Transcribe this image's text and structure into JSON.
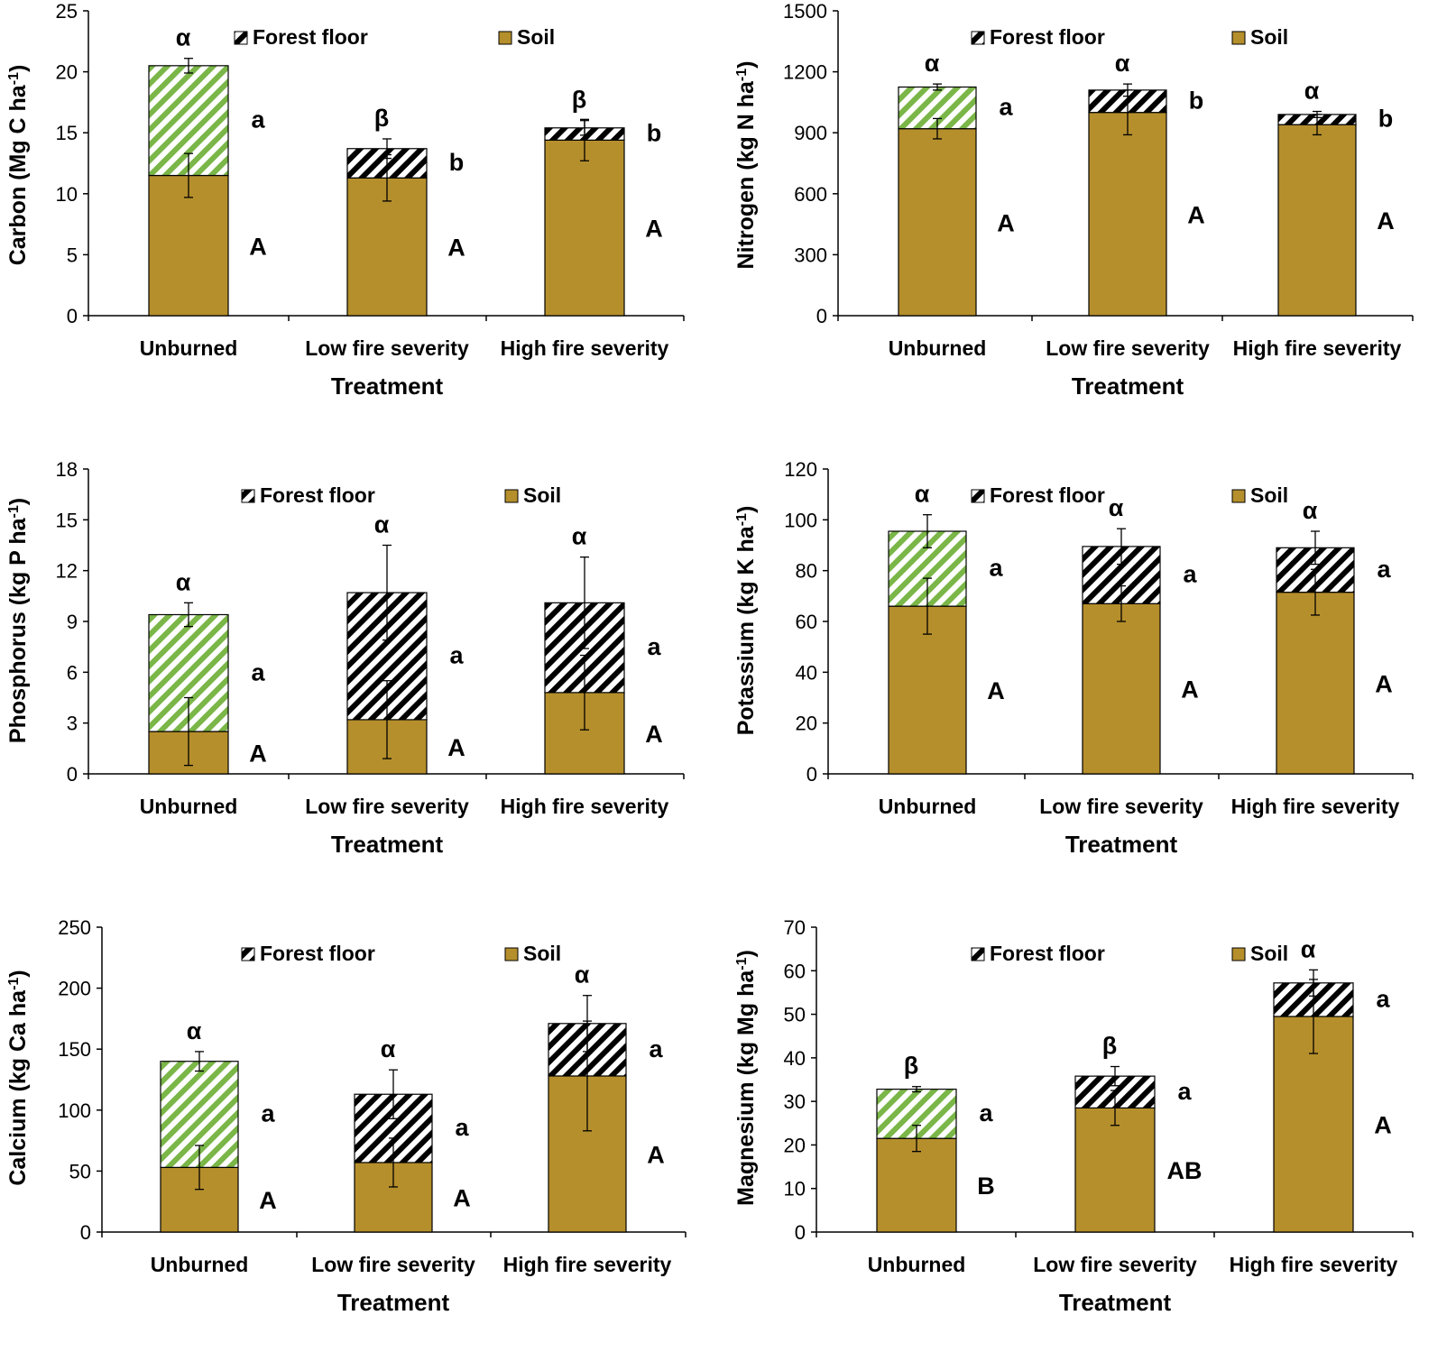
{
  "figure": {
    "x_axis_title": "Treatment",
    "legend": {
      "forest_floor": "Forest floor",
      "soil": "Soil"
    }
  },
  "colors": {
    "soil": "#b58f2c",
    "unburned_hatch": "#7ab648",
    "burned_hatch": "#000000",
    "axis": "#000000"
  },
  "chart_data": [
    {
      "type": "bar",
      "stacked": true,
      "ylabel": "Carbon (Mg C ha-1)",
      "ylabel_main": "Carbon (Mg C ha",
      "ylabel_sup": "-1",
      "ylabel_end": ")",
      "ylim": [
        0,
        25
      ],
      "yticks": [
        0,
        5,
        10,
        15,
        20,
        25
      ],
      "categories": [
        "Unburned",
        "Low fire severity",
        "High fire severity"
      ],
      "series": [
        {
          "name": "Soil",
          "values": [
            11.5,
            11.3,
            14.4
          ],
          "errors": [
            1.8,
            1.9,
            1.7
          ]
        },
        {
          "name": "Forest floor",
          "values": [
            9.0,
            2.4,
            1.0
          ],
          "errors": [
            0.6,
            0.8,
            0.6
          ]
        }
      ],
      "letters": {
        "soil": [
          "A",
          "A",
          "A"
        ],
        "forest_floor": [
          "a",
          "b",
          "b"
        ],
        "total": [
          "α",
          "β",
          "β"
        ]
      }
    },
    {
      "type": "bar",
      "stacked": true,
      "ylabel": "Nitrogen (kg N ha-1)",
      "ylabel_main": "Nitrogen (kg N ha",
      "ylabel_sup": "-1",
      "ylabel_end": ")",
      "ylim": [
        0,
        1500
      ],
      "yticks": [
        0,
        300,
        600,
        900,
        1200,
        1500
      ],
      "categories": [
        "Unburned",
        "Low fire severity",
        "High fire severity"
      ],
      "series": [
        {
          "name": "Soil",
          "values": [
            920,
            1000,
            940
          ],
          "errors": [
            50,
            110,
            50
          ]
        },
        {
          "name": "Forest floor",
          "values": [
            205,
            110,
            50
          ],
          "errors": [
            15,
            30,
            15
          ]
        }
      ],
      "letters": {
        "soil": [
          "A",
          "A",
          "A"
        ],
        "forest_floor": [
          "a",
          "b",
          "b"
        ],
        "total": [
          "α",
          "α",
          "α"
        ]
      }
    },
    {
      "type": "bar",
      "stacked": true,
      "ylabel": "Phosphorus (kg P ha-1)",
      "ylabel_main": "Phosphorus (kg P ha",
      "ylabel_sup": "-1",
      "ylabel_end": ")",
      "ylim": [
        0,
        18
      ],
      "yticks": [
        0,
        3,
        6,
        9,
        12,
        15,
        18
      ],
      "categories": [
        "Unburned",
        "Low fire severity",
        "High fire severity"
      ],
      "series": [
        {
          "name": "Soil",
          "values": [
            2.5,
            3.2,
            4.8
          ],
          "errors": [
            2.0,
            2.3,
            2.2
          ]
        },
        {
          "name": "Forest floor",
          "values": [
            6.9,
            7.5,
            5.3
          ],
          "errors": [
            0.7,
            2.8,
            2.7
          ]
        }
      ],
      "letters": {
        "soil": [
          "A",
          "A",
          "A"
        ],
        "forest_floor": [
          "a",
          "a",
          "a"
        ],
        "total": [
          "α",
          "α",
          "α"
        ]
      }
    },
    {
      "type": "bar",
      "stacked": true,
      "ylabel": "Potassium (kg K ha-1)",
      "ylabel_main": "Potassium (kg K ha",
      "ylabel_sup": "-1",
      "ylabel_end": ")",
      "ylim": [
        0,
        120
      ],
      "yticks": [
        0,
        20,
        40,
        60,
        80,
        100,
        120
      ],
      "categories": [
        "Unburned",
        "Low fire severity",
        "High fire severity"
      ],
      "series": [
        {
          "name": "Soil",
          "values": [
            66,
            67,
            71.5
          ],
          "errors": [
            11,
            7,
            9
          ]
        },
        {
          "name": "Forest floor",
          "values": [
            29.5,
            22.5,
            17.5
          ],
          "errors": [
            6.5,
            7,
            6.5
          ]
        }
      ],
      "letters": {
        "soil": [
          "A",
          "A",
          "A"
        ],
        "forest_floor": [
          "a",
          "a",
          "a"
        ],
        "total": [
          "α",
          "α",
          "α"
        ]
      }
    },
    {
      "type": "bar",
      "stacked": true,
      "ylabel": "Calcium (kg Ca ha-1)",
      "ylabel_main": "Calcium (kg Ca ha",
      "ylabel_sup": "-1",
      "ylabel_end": ")",
      "ylim": [
        0,
        250
      ],
      "yticks": [
        0,
        50,
        100,
        150,
        200,
        250
      ],
      "categories": [
        "Unburned",
        "Low fire severity",
        "High fire severity"
      ],
      "series": [
        {
          "name": "Soil",
          "values": [
            53,
            57,
            128
          ],
          "errors": [
            18,
            20,
            45
          ]
        },
        {
          "name": "Forest floor",
          "values": [
            87,
            56,
            43
          ],
          "errors": [
            8,
            20,
            23
          ]
        }
      ],
      "letters": {
        "soil": [
          "A",
          "A",
          "A"
        ],
        "forest_floor": [
          "a",
          "a",
          "a"
        ],
        "total": [
          "α",
          "α",
          "α"
        ]
      }
    },
    {
      "type": "bar",
      "stacked": true,
      "ylabel": "Magnesium (kg Mg ha-1)",
      "ylabel_main": "Magnesium (kg Mg ha",
      "ylabel_sup": "-1",
      "ylabel_end": ")",
      "ylim": [
        0,
        70
      ],
      "yticks": [
        0,
        10,
        20,
        30,
        40,
        50,
        60,
        70
      ],
      "categories": [
        "Unburned",
        "Low fire severity",
        "High fire severity"
      ],
      "series": [
        {
          "name": "Soil",
          "values": [
            21.5,
            28.5,
            49.5
          ],
          "errors": [
            3,
            4,
            8.5
          ]
        },
        {
          "name": "Forest floor",
          "values": [
            11.3,
            7.3,
            7.7
          ],
          "errors": [
            0.6,
            2.2,
            3.0
          ]
        }
      ],
      "letters": {
        "soil": [
          "B",
          "AB",
          "A"
        ],
        "forest_floor": [
          "a",
          "a",
          "a"
        ],
        "total": [
          "β",
          "β",
          "α"
        ]
      }
    }
  ]
}
